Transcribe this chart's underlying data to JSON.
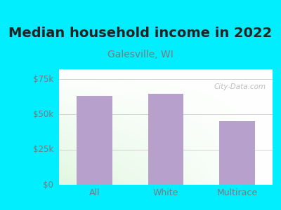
{
  "title": "Median household income in 2022",
  "subtitle": "Galesville, WI",
  "categories": [
    "All",
    "White",
    "Multirace"
  ],
  "values": [
    63000,
    64500,
    45000
  ],
  "bar_color": "#b8a0cc",
  "title_fontsize": 14,
  "subtitle_fontsize": 10,
  "title_color": "#222222",
  "subtitle_color": "#7a7a7a",
  "tick_color": "#7a7a7a",
  "yticks": [
    0,
    25000,
    50000,
    75000
  ],
  "ytick_labels": [
    "$0",
    "$25k",
    "$50k",
    "$75k"
  ],
  "ylim": [
    0,
    82000
  ],
  "bg_color": "#00eeff",
  "watermark": "City-Data.com",
  "bar_width": 0.5,
  "grid_color": "#cccccc"
}
